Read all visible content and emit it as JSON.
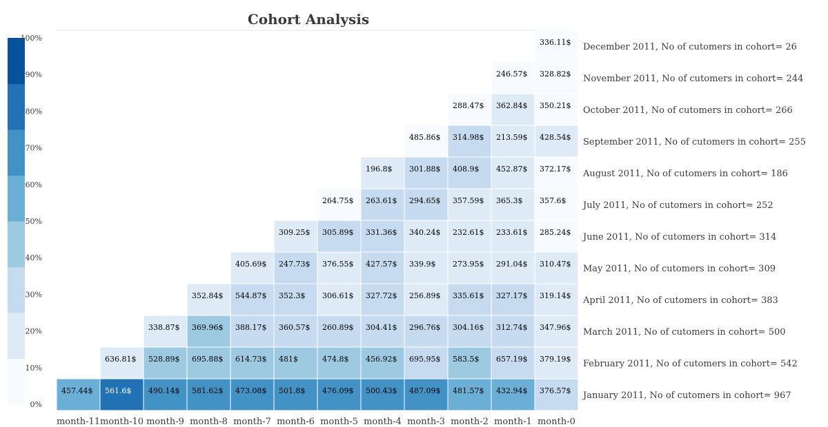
{
  "chart_data": {
    "type": "heatmap",
    "title": "Cohort Analysis",
    "columns": [
      "month-11",
      "month-10",
      "month-9",
      "month-8",
      "month-7",
      "month-6",
      "month-5",
      "month-4",
      "month-3",
      "month-2",
      "month-1",
      "month-0"
    ],
    "rows": [
      {
        "label": "December 2011, No of cutomers in cohort= 26",
        "values": [
          null,
          null,
          null,
          null,
          null,
          null,
          null,
          null,
          null,
          null,
          null,
          336.11
        ],
        "shades": [
          null,
          null,
          null,
          null,
          null,
          null,
          null,
          null,
          null,
          null,
          null,
          0
        ]
      },
      {
        "label": "November 2011, No of cutomers in cohort= 244",
        "values": [
          null,
          null,
          null,
          null,
          null,
          null,
          null,
          null,
          null,
          null,
          246.57,
          328.82
        ],
        "shades": [
          null,
          null,
          null,
          null,
          null,
          null,
          null,
          null,
          null,
          null,
          0,
          0
        ]
      },
      {
        "label": "October 2011, No of cutomers in cohort= 266",
        "values": [
          null,
          null,
          null,
          null,
          null,
          null,
          null,
          null,
          null,
          288.47,
          362.84,
          350.21
        ],
        "shades": [
          null,
          null,
          null,
          null,
          null,
          null,
          null,
          null,
          null,
          0,
          1,
          0
        ]
      },
      {
        "label": "September 2011, No of cutomers in cohort= 255",
        "values": [
          null,
          null,
          null,
          null,
          null,
          null,
          null,
          null,
          485.86,
          314.98,
          213.59,
          428.54
        ],
        "shades": [
          null,
          null,
          null,
          null,
          null,
          null,
          null,
          null,
          0,
          2,
          1,
          1
        ]
      },
      {
        "label": "August 2011, No of cutomers in cohort= 186",
        "values": [
          null,
          null,
          null,
          null,
          null,
          null,
          null,
          196.8,
          301.88,
          408.9,
          452.87,
          372.17
        ],
        "shades": [
          null,
          null,
          null,
          null,
          null,
          null,
          null,
          1,
          2,
          2,
          1,
          0
        ]
      },
      {
        "label": "July 2011, No of cutomers in cohort= 252",
        "values": [
          null,
          null,
          null,
          null,
          null,
          null,
          264.75,
          263.61,
          294.65,
          357.59,
          365.3,
          357.6
        ],
        "shades": [
          null,
          null,
          null,
          null,
          null,
          null,
          0,
          2,
          2,
          1,
          1,
          0
        ]
      },
      {
        "label": "June 2011, No of cutomers in cohort= 314",
        "values": [
          null,
          null,
          null,
          null,
          null,
          309.25,
          305.89,
          331.36,
          340.24,
          232.61,
          233.61,
          285.24
        ],
        "shades": [
          null,
          null,
          null,
          null,
          null,
          1,
          2,
          2,
          1,
          1,
          1,
          0
        ]
      },
      {
        "label": "May 2011, No of cutomers in cohort= 309",
        "values": [
          null,
          null,
          null,
          null,
          405.69,
          247.73,
          376.55,
          427.57,
          339.9,
          273.95,
          291.04,
          310.47
        ],
        "shades": [
          null,
          null,
          null,
          null,
          1,
          2,
          1,
          2,
          1,
          1,
          1,
          1
        ]
      },
      {
        "label": "April 2011, No of cutomers in cohort= 383",
        "values": [
          null,
          null,
          null,
          352.84,
          544.87,
          352.3,
          306.61,
          327.72,
          256.89,
          335.61,
          327.17,
          319.14
        ],
        "shades": [
          null,
          null,
          null,
          1,
          2,
          2,
          1,
          2,
          1,
          2,
          2,
          1
        ]
      },
      {
        "label": "March 2011, No of cutomers in cohort= 500",
        "values": [
          null,
          null,
          338.87,
          369.96,
          388.17,
          360.57,
          260.89,
          304.41,
          296.76,
          304.16,
          312.74,
          347.96
        ],
        "shades": [
          null,
          null,
          1,
          3,
          2,
          2,
          2,
          2,
          2,
          2,
          2,
          1
        ]
      },
      {
        "label": "February 2011, No of cutomers in cohort= 542",
        "values": [
          null,
          636.81,
          528.89,
          695.88,
          614.73,
          481.0,
          474.8,
          456.92,
          695.95,
          583.5,
          657.19,
          379.19
        ],
        "shades": [
          null,
          1,
          3,
          3,
          3,
          3,
          3,
          3,
          2,
          3,
          2,
          1
        ]
      },
      {
        "label": "January 2011, No of cutomers in cohort= 967",
        "values": [
          457.44,
          561.6,
          490.14,
          581.62,
          473.08,
          501.8,
          476.09,
          500.43,
          487.09,
          481.57,
          432.94,
          376.57
        ],
        "shades": [
          4,
          6,
          5,
          5,
          5,
          5,
          5,
          5,
          5,
          4,
          4,
          2
        ]
      }
    ],
    "value_suffix": "$",
    "colorbar": {
      "ticks": [
        "0%",
        "10%",
        "20%",
        "30%",
        "40%",
        "50%",
        "60%",
        "70%",
        "80%",
        "90%",
        "100%"
      ],
      "range": [
        0,
        100
      ],
      "colors": [
        "#f7fbff",
        "#deebf7",
        "#c6dbef",
        "#9ecae1",
        "#6baed6",
        "#4292c6",
        "#2171b5",
        "#08519c"
      ]
    },
    "grid": false
  }
}
